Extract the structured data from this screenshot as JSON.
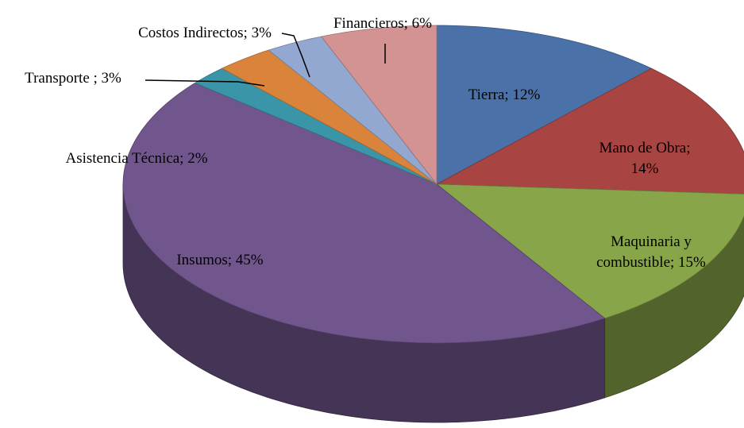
{
  "chart_data": {
    "type": "pie3d",
    "categories": [
      "Tierra;",
      "Mano de Obra;",
      "Maquinaria y combustible;",
      "Insumos;",
      "Asistencia Técnica;",
      "Transporte ;",
      "Costos Indirectos;",
      "Financieros;"
    ],
    "values": [
      12,
      14,
      15,
      45,
      2,
      3,
      3,
      6
    ],
    "value_labels": [
      "12%",
      "14%",
      "15%",
      "45%",
      "2%",
      "3%",
      "3%",
      "6%"
    ],
    "colors": [
      "#4a72a8",
      "#a84442",
      "#88a54a",
      "#71568d",
      "#3b95a8",
      "#d9843a",
      "#93a8d0",
      "#d39392"
    ]
  }
}
